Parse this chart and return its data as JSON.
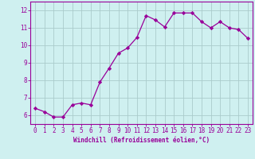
{
  "x": [
    0,
    1,
    2,
    3,
    4,
    5,
    6,
    7,
    8,
    9,
    10,
    11,
    12,
    13,
    14,
    15,
    16,
    17,
    18,
    19,
    20,
    21,
    22,
    23
  ],
  "y": [
    6.4,
    6.2,
    5.9,
    5.9,
    6.6,
    6.7,
    6.6,
    7.9,
    8.7,
    9.55,
    9.85,
    10.45,
    11.7,
    11.45,
    11.05,
    11.85,
    11.85,
    11.85,
    11.35,
    11.0,
    11.35,
    11.0,
    10.9,
    10.4
  ],
  "line_color": "#990099",
  "marker": "D",
  "markersize": 2.2,
  "linewidth": 0.9,
  "background_color": "#cff0f0",
  "grid_color": "#aacccc",
  "xlabel": "Windchill (Refroidissement éolien,°C)",
  "xlabel_color": "#990099",
  "tick_color": "#990099",
  "spine_color": "#990099",
  "ylim": [
    5.5,
    12.5
  ],
  "xlim": [
    -0.5,
    23.5
  ],
  "yticks": [
    6,
    7,
    8,
    9,
    10,
    11,
    12
  ],
  "xticks": [
    0,
    1,
    2,
    3,
    4,
    5,
    6,
    7,
    8,
    9,
    10,
    11,
    12,
    13,
    14,
    15,
    16,
    17,
    18,
    19,
    20,
    21,
    22,
    23
  ],
  "tick_fontsize": 5.5,
  "xlabel_fontsize": 5.5
}
